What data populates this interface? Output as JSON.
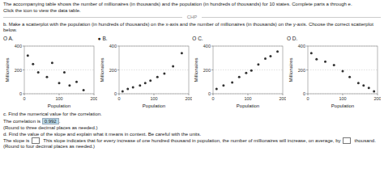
{
  "chart_data": [
    {
      "type": "scatter",
      "title": "O A.",
      "xlabel": "Population",
      "ylabel": "Millionaires",
      "color": "#333333",
      "x": [
        10,
        25,
        40,
        65,
        80,
        100,
        115,
        130,
        150,
        170
      ],
      "values": [
        320,
        250,
        180,
        140,
        260,
        90,
        180,
        70,
        100,
        30
      ],
      "xlim": [
        0,
        200
      ],
      "ylim": [
        0,
        400
      ],
      "xticks": [
        0,
        100,
        200
      ],
      "yticks": [
        0,
        200,
        400
      ],
      "grid": "y"
    },
    {
      "type": "scatter",
      "title": "● B.",
      "xlabel": "Population",
      "ylabel": "Millionaires",
      "color": "#333333",
      "x": [
        10,
        25,
        40,
        60,
        75,
        90,
        110,
        130,
        155,
        180
      ],
      "values": [
        20,
        40,
        55,
        70,
        90,
        110,
        140,
        170,
        230,
        340
      ],
      "xlim": [
        0,
        200
      ],
      "ylim": [
        0,
        400
      ],
      "xticks": [
        0,
        100,
        200
      ],
      "yticks": [
        0,
        200,
        400
      ],
      "grid": "y"
    },
    {
      "type": "scatter",
      "title": "O C.",
      "xlabel": "Population",
      "ylabel": "Millionaires",
      "color": "#333333",
      "x": [
        10,
        30,
        55,
        75,
        95,
        110,
        130,
        150,
        165,
        185
      ],
      "values": [
        40,
        70,
        95,
        140,
        175,
        195,
        245,
        295,
        315,
        355
      ],
      "xlim": [
        0,
        200
      ],
      "ylim": [
        0,
        400
      ],
      "xticks": [
        0,
        100,
        200
      ],
      "yticks": [
        0,
        200,
        400
      ],
      "grid": "y"
    },
    {
      "type": "scatter",
      "title": "O D.",
      "xlabel": "Population",
      "ylabel": "Millionaires",
      "color": "#333333",
      "x": [
        10,
        25,
        50,
        75,
        100,
        120,
        145,
        160,
        175,
        190
      ],
      "values": [
        340,
        290,
        270,
        240,
        190,
        140,
        90,
        70,
        50,
        20
      ],
      "xlim": [
        0,
        200
      ],
      "ylim": [
        0,
        400
      ],
      "xticks": [
        0,
        100,
        200
      ],
      "yticks": [
        0,
        200,
        400
      ],
      "grid": "y"
    }
  ],
  "annotations": [
    {
      "text": "The accompanying table shows the number of millionaires (in thousands) and the population (in hundreds of thousands) for 10 states. Complete parts a through e."
    },
    {
      "text": "Click the icon to view the data table."
    },
    {
      "text": "CHP"
    },
    {
      "text": "b. Make a scatterplot with the population (in hundreds of thousands) on the x-axis and the number of millionaires (in thousands) on the y-axis. Choose the correct scatterplot below."
    },
    {
      "text": "c. Find the numerical value for the correlation."
    },
    {
      "text": "The correlation is "
    },
    {
      "text": "0.992",
      "color": "#b8d8e8"
    },
    {
      "text": "."
    },
    {
      "text": "(Round to three decimal places as needed.)"
    },
    {
      "text": "d. Find the value of the slope and explain what it means in context. Be careful with the units."
    },
    {
      "text": "The slope is "
    },
    {
      "text": "  This slope indicates that for every increase of one hundred thousand in population, the number of millionaires will increase, on average, by"
    },
    {
      "text": "  thousand."
    },
    {
      "text": "(Round to four decimal places as needed.)"
    }
  ]
}
